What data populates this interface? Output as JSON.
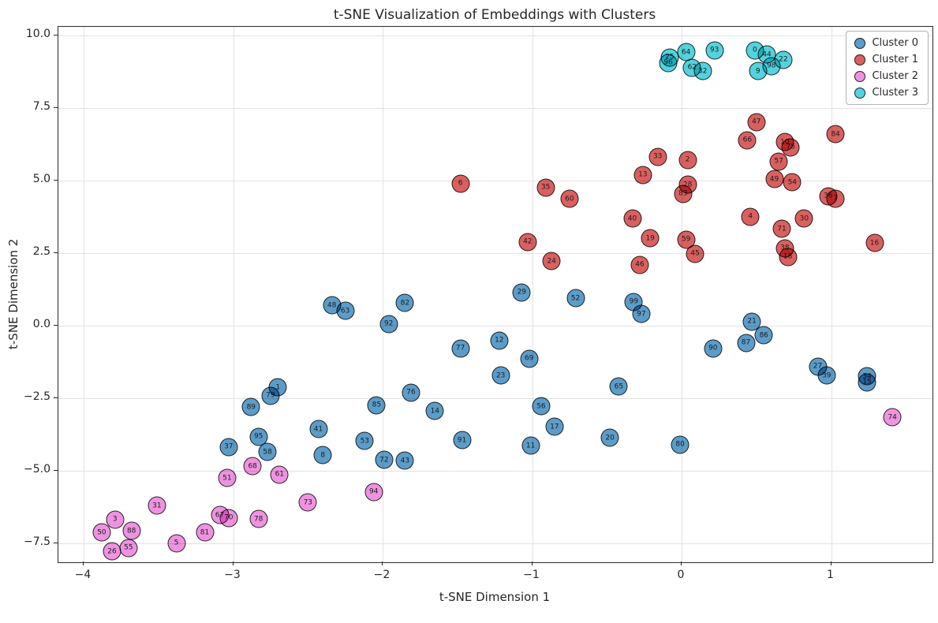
{
  "title": "t-SNE Visualization of Embeddings with Clusters",
  "axes": {
    "x_ticks": [
      {
        "value": -4,
        "label": "−4"
      },
      {
        "value": -3,
        "label": "−3"
      },
      {
        "value": -2,
        "label": "−2"
      },
      {
        "value": -1,
        "label": "−1"
      },
      {
        "value": 0,
        "label": "0"
      },
      {
        "value": 1,
        "label": "1"
      }
    ],
    "y_ticks": [
      {
        "value": 10.0,
        "label": "10.0"
      },
      {
        "value": 7.5,
        "label": "7.5"
      },
      {
        "value": 5.0,
        "label": "5.0"
      },
      {
        "value": 2.5,
        "label": "2.5"
      },
      {
        "value": 0.0,
        "label": "0.0"
      },
      {
        "value": -2.5,
        "label": "−2.5"
      },
      {
        "value": -5.0,
        "label": "−5.0"
      },
      {
        "value": -7.5,
        "label": "−7.5"
      }
    ]
  },
  "legend": {
    "entries": [
      {
        "label": "Cluster 0",
        "color": "#5c9cc9"
      },
      {
        "label": "Cluster 1",
        "color": "#da6060"
      },
      {
        "label": "Cluster 2",
        "color": "#ee93e0"
      },
      {
        "label": "Cluster 3",
        "color": "#52d3dd"
      }
    ],
    "position": "upper right"
  },
  "colors": {
    "grid": "#e2e2e2",
    "spine": "#2b2b2b",
    "text": "#262626",
    "marker_edge": "#0a0a0a"
  },
  "chart_data": {
    "type": "scatter",
    "title": "t-SNE Visualization of Embeddings with Clusters",
    "xlabel": "t-SNE Dimension 1",
    "ylabel": "t-SNE Dimension 2",
    "xlim": [
      -4.169,
      1.678
    ],
    "ylim": [
      -8.166,
      10.299
    ],
    "grid": true,
    "legend_position": "upper right",
    "point_labels": "index of each embedding shown inside its marker",
    "series": [
      {
        "name": "Cluster 0",
        "color": "#5c9cc9",
        "points": [
          {
            "label": "1",
            "x": -2.7,
            "y": -2.13
          },
          {
            "label": "8",
            "x": -2.4,
            "y": -4.47
          },
          {
            "label": "11",
            "x": -1.01,
            "y": -4.15
          },
          {
            "label": "12",
            "x": -1.22,
            "y": -0.51
          },
          {
            "label": "14",
            "x": -1.65,
            "y": -2.95
          },
          {
            "label": "15",
            "x": 1.24,
            "y": -1.96
          },
          {
            "label": "17",
            "x": -0.85,
            "y": -3.49
          },
          {
            "label": "20",
            "x": -0.48,
            "y": -3.88
          },
          {
            "label": "21",
            "x": 0.47,
            "y": 0.14
          },
          {
            "label": "23",
            "x": -1.21,
            "y": -1.73
          },
          {
            "label": "27",
            "x": 0.91,
            "y": -1.42
          },
          {
            "label": "29",
            "x": -1.07,
            "y": 1.14
          },
          {
            "label": "34",
            "x": 1.24,
            "y": -1.75
          },
          {
            "label": "37",
            "x": -3.03,
            "y": -4.19
          },
          {
            "label": "39",
            "x": 0.97,
            "y": -1.72
          },
          {
            "label": "41",
            "x": -2.43,
            "y": -3.58
          },
          {
            "label": "43",
            "x": -1.85,
            "y": -4.66
          },
          {
            "label": "48",
            "x": -2.34,
            "y": 0.7
          },
          {
            "label": "52",
            "x": -0.71,
            "y": 0.94
          },
          {
            "label": "53",
            "x": -2.12,
            "y": -3.99
          },
          {
            "label": "56",
            "x": -0.94,
            "y": -2.79
          },
          {
            "label": "58",
            "x": -2.77,
            "y": -4.36
          },
          {
            "label": "63",
            "x": -2.25,
            "y": 0.5
          },
          {
            "label": "65",
            "x": -0.42,
            "y": -2.11
          },
          {
            "label": "69",
            "x": -1.02,
            "y": -1.14
          },
          {
            "label": "72",
            "x": -1.99,
            "y": -4.64
          },
          {
            "label": "76",
            "x": -1.81,
            "y": -2.31
          },
          {
            "label": "77",
            "x": -1.48,
            "y": -0.79
          },
          {
            "label": "79",
            "x": -2.75,
            "y": -2.42
          },
          {
            "label": "80",
            "x": -0.01,
            "y": -4.1
          },
          {
            "label": "82",
            "x": -1.85,
            "y": 0.78
          },
          {
            "label": "85",
            "x": -2.04,
            "y": -2.74
          },
          {
            "label": "86",
            "x": 0.55,
            "y": -0.34
          },
          {
            "label": "87",
            "x": 0.43,
            "y": -0.6
          },
          {
            "label": "89",
            "x": -2.88,
            "y": -2.81
          },
          {
            "label": "90",
            "x": 0.21,
            "y": -0.79
          },
          {
            "label": "91",
            "x": -1.47,
            "y": -3.96
          },
          {
            "label": "92",
            "x": -1.96,
            "y": 0.05
          },
          {
            "label": "95",
            "x": -2.83,
            "y": -3.83
          },
          {
            "label": "97",
            "x": -0.27,
            "y": 0.4
          },
          {
            "label": "99",
            "x": -0.32,
            "y": 0.81
          }
        ]
      },
      {
        "name": "Cluster 1",
        "color": "#da6060",
        "points": [
          {
            "label": "2",
            "x": 0.04,
            "y": 5.71
          },
          {
            "label": "4",
            "x": 0.46,
            "y": 3.75
          },
          {
            "label": "6",
            "x": -1.48,
            "y": 4.9
          },
          {
            "label": "7",
            "x": 1.03,
            "y": 4.38
          },
          {
            "label": "10",
            "x": 0.69,
            "y": 6.32
          },
          {
            "label": "13",
            "x": -0.26,
            "y": 5.19
          },
          {
            "label": "16",
            "x": 1.29,
            "y": 2.84
          },
          {
            "label": "18",
            "x": 0.71,
            "y": 2.36
          },
          {
            "label": "19",
            "x": -0.21,
            "y": 3.0
          },
          {
            "label": "24",
            "x": -0.87,
            "y": 2.22
          },
          {
            "label": "28",
            "x": 0.04,
            "y": 4.86
          },
          {
            "label": "30",
            "x": 0.82,
            "y": 3.68
          },
          {
            "label": "33",
            "x": -0.16,
            "y": 5.82
          },
          {
            "label": "35",
            "x": -0.91,
            "y": 4.76
          },
          {
            "label": "36",
            "x": 0.98,
            "y": 4.46
          },
          {
            "label": "38",
            "x": 0.69,
            "y": 2.66
          },
          {
            "label": "40",
            "x": -0.33,
            "y": 3.68
          },
          {
            "label": "42",
            "x": -1.03,
            "y": 2.88
          },
          {
            "label": "45",
            "x": 0.09,
            "y": 2.47
          },
          {
            "label": "46",
            "x": -0.28,
            "y": 2.1
          },
          {
            "label": "47",
            "x": 0.5,
            "y": 7.01
          },
          {
            "label": "49",
            "x": 0.62,
            "y": 5.05
          },
          {
            "label": "54",
            "x": 0.74,
            "y": 4.93
          },
          {
            "label": "57",
            "x": 0.65,
            "y": 5.66
          },
          {
            "label": "59",
            "x": 0.03,
            "y": 2.97
          },
          {
            "label": "60",
            "x": -0.75,
            "y": 4.37
          },
          {
            "label": "66",
            "x": 0.44,
            "y": 6.39
          },
          {
            "label": "71",
            "x": 0.67,
            "y": 3.33
          },
          {
            "label": "75",
            "x": 0.73,
            "y": 6.15
          },
          {
            "label": "83",
            "x": 0.01,
            "y": 4.54
          },
          {
            "label": "84",
            "x": 1.03,
            "y": 6.6
          }
        ]
      },
      {
        "name": "Cluster 2",
        "color": "#ee93e0",
        "points": [
          {
            "label": "3",
            "x": -3.79,
            "y": -6.69
          },
          {
            "label": "5",
            "x": -3.38,
            "y": -7.5
          },
          {
            "label": "26",
            "x": -3.81,
            "y": -7.79
          },
          {
            "label": "31",
            "x": -3.51,
            "y": -6.21
          },
          {
            "label": "50",
            "x": -3.88,
            "y": -7.14
          },
          {
            "label": "51",
            "x": -3.04,
            "y": -5.26
          },
          {
            "label": "55",
            "x": -3.7,
            "y": -7.67
          },
          {
            "label": "61",
            "x": -2.69,
            "y": -5.14
          },
          {
            "label": "67",
            "x": -3.09,
            "y": -6.54
          },
          {
            "label": "68",
            "x": -2.87,
            "y": -4.85
          },
          {
            "label": "70",
            "x": -3.03,
            "y": -6.63
          },
          {
            "label": "73",
            "x": -2.5,
            "y": -6.1
          },
          {
            "label": "74",
            "x": 1.41,
            "y": -3.17
          },
          {
            "label": "78",
            "x": -2.83,
            "y": -6.68
          },
          {
            "label": "81",
            "x": -3.19,
            "y": -7.14
          },
          {
            "label": "88",
            "x": -3.68,
            "y": -7.09
          },
          {
            "label": "94",
            "x": -2.06,
            "y": -5.74
          }
        ]
      },
      {
        "name": "Cluster 3",
        "color": "#52d3dd",
        "points": [
          {
            "label": "0",
            "x": 0.49,
            "y": 9.49
          },
          {
            "label": "9",
            "x": 0.51,
            "y": 8.77
          },
          {
            "label": "22",
            "x": 0.68,
            "y": 9.16
          },
          {
            "label": "25",
            "x": -0.08,
            "y": 9.25
          },
          {
            "label": "32",
            "x": 0.14,
            "y": 8.77
          },
          {
            "label": "44",
            "x": 0.57,
            "y": 9.34
          },
          {
            "label": "62",
            "x": 0.07,
            "y": 8.89
          },
          {
            "label": "64",
            "x": 0.03,
            "y": 9.43
          },
          {
            "label": "93",
            "x": 0.22,
            "y": 9.49
          },
          {
            "label": "96",
            "x": -0.09,
            "y": 9.05
          },
          {
            "label": "98",
            "x": 0.6,
            "y": 8.95
          }
        ]
      }
    ]
  }
}
